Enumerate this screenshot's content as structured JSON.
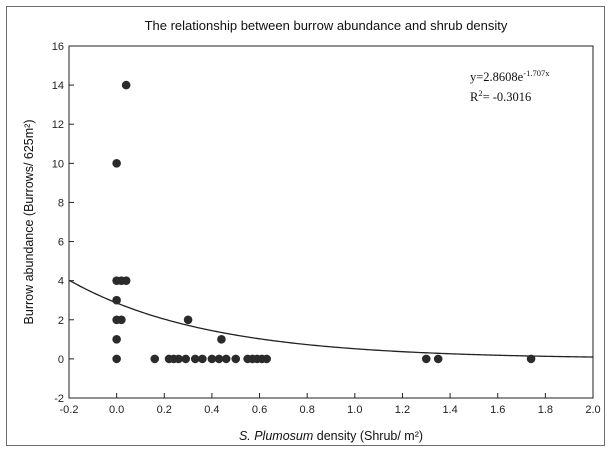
{
  "chart_data": {
    "type": "scatter",
    "title": "The relationship between burrow abundance and shrub density",
    "xlabel_italic": "S. Plumosum",
    "xlabel_rest": " density (Shrub/ m²)",
    "ylabel": "Burrow abundance (Burrows/ 625m²)",
    "xlim": [
      -0.2,
      2.0
    ],
    "ylim": [
      -2,
      16
    ],
    "xticks": [
      -0.2,
      0.0,
      0.2,
      0.4,
      0.6,
      0.8,
      1.0,
      1.2,
      1.4,
      1.6,
      1.8,
      2.0
    ],
    "xtick_labels": [
      "-0.2",
      "0.0",
      "0.2",
      "0.4",
      "0.6",
      "0.8",
      "1.0",
      "1.2",
      "1.4",
      "1.6",
      "1.8",
      "2.0"
    ],
    "yticks": [
      -2,
      0,
      2,
      4,
      6,
      8,
      10,
      12,
      14,
      16
    ],
    "ytick_labels": [
      "-2",
      "0",
      "2",
      "4",
      "6",
      "8",
      "10",
      "12",
      "14",
      "16"
    ],
    "grid": false,
    "point_color": "#2b2b2b",
    "points": [
      {
        "x": 0.0,
        "y": 0
      },
      {
        "x": 0.0,
        "y": 1
      },
      {
        "x": 0.0,
        "y": 2
      },
      {
        "x": 0.02,
        "y": 2
      },
      {
        "x": 0.0,
        "y": 3
      },
      {
        "x": 0.0,
        "y": 4
      },
      {
        "x": 0.02,
        "y": 4
      },
      {
        "x": 0.04,
        "y": 4
      },
      {
        "x": 0.0,
        "y": 10
      },
      {
        "x": 0.04,
        "y": 14
      },
      {
        "x": 0.16,
        "y": 0
      },
      {
        "x": 0.22,
        "y": 0
      },
      {
        "x": 0.24,
        "y": 0
      },
      {
        "x": 0.26,
        "y": 0
      },
      {
        "x": 0.29,
        "y": 0
      },
      {
        "x": 0.33,
        "y": 0
      },
      {
        "x": 0.36,
        "y": 0
      },
      {
        "x": 0.4,
        "y": 0
      },
      {
        "x": 0.43,
        "y": 0
      },
      {
        "x": 0.46,
        "y": 0
      },
      {
        "x": 0.5,
        "y": 0
      },
      {
        "x": 0.55,
        "y": 0
      },
      {
        "x": 0.57,
        "y": 0
      },
      {
        "x": 0.59,
        "y": 0
      },
      {
        "x": 0.61,
        "y": 0
      },
      {
        "x": 0.63,
        "y": 0
      },
      {
        "x": 0.3,
        "y": 2
      },
      {
        "x": 0.44,
        "y": 1
      },
      {
        "x": 1.3,
        "y": 0
      },
      {
        "x": 1.35,
        "y": 0
      },
      {
        "x": 1.74,
        "y": 0
      }
    ],
    "fit": {
      "a": 2.8608,
      "b": -1.707,
      "type": "exponential"
    },
    "equation_main": "y=2.8608e",
    "equation_exp": "-1.707x",
    "r2_prefix": "R",
    "r2_sup": "2",
    "r2_rest": "= -0.3016",
    "annotation_position": "top-right"
  }
}
